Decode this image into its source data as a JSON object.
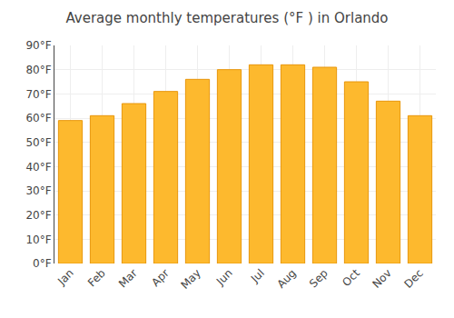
{
  "chart_data": {
    "type": "bar",
    "title": "Average monthly temperatures (°F ) in Orlando",
    "categories": [
      "Jan",
      "Feb",
      "Mar",
      "Apr",
      "May",
      "Jun",
      "Jul",
      "Aug",
      "Sep",
      "Oct",
      "Nov",
      "Dec"
    ],
    "values": [
      59,
      61,
      66,
      71,
      76,
      80,
      82,
      82,
      81,
      75,
      67,
      61
    ],
    "color": "#FDB92E",
    "ylim": [
      0,
      90
    ],
    "yticks": [
      {
        "value": 0,
        "label": "0°F"
      },
      {
        "value": 10,
        "label": "10°F"
      },
      {
        "value": 20,
        "label": "20°F"
      },
      {
        "value": 30,
        "label": "30°F"
      },
      {
        "value": 40,
        "label": "40°F"
      },
      {
        "value": 50,
        "label": "50°F"
      },
      {
        "value": 60,
        "label": "60°F"
      },
      {
        "value": 70,
        "label": "70°F"
      },
      {
        "value": 80,
        "label": "80°F"
      },
      {
        "value": 90,
        "label": "90°F"
      }
    ],
    "grid": true
  }
}
